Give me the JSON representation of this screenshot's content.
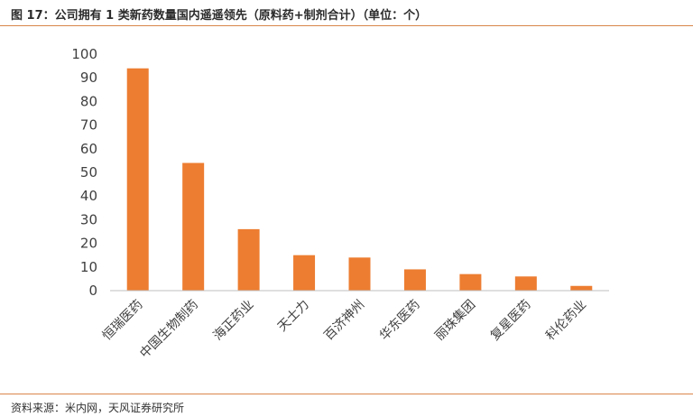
{
  "header": {
    "title": "图 17：公司拥有 1 类新药数量国内遥遥领先（原料药+制剂合计）（单位：个）"
  },
  "footer": {
    "source": "资料来源：米内网，天风证券研究所"
  },
  "colors": {
    "bar": "#ED7D31",
    "rule": "#D9854A",
    "axis": "#BFBFBF"
  },
  "chart_data": {
    "type": "bar",
    "title": "",
    "xlabel": "",
    "ylabel": "",
    "ylim": [
      0,
      100
    ],
    "yticks": [
      0,
      10,
      20,
      30,
      40,
      50,
      60,
      70,
      80,
      90,
      100
    ],
    "grid": false,
    "categories": [
      "恒瑞医药",
      "中国生物制药",
      "海正药业",
      "天士力",
      "百济神州",
      "华东医药",
      "丽珠集团",
      "复星医药",
      "科伦药业"
    ],
    "values": [
      94,
      54,
      26,
      15,
      14,
      9,
      7,
      6,
      2
    ]
  }
}
